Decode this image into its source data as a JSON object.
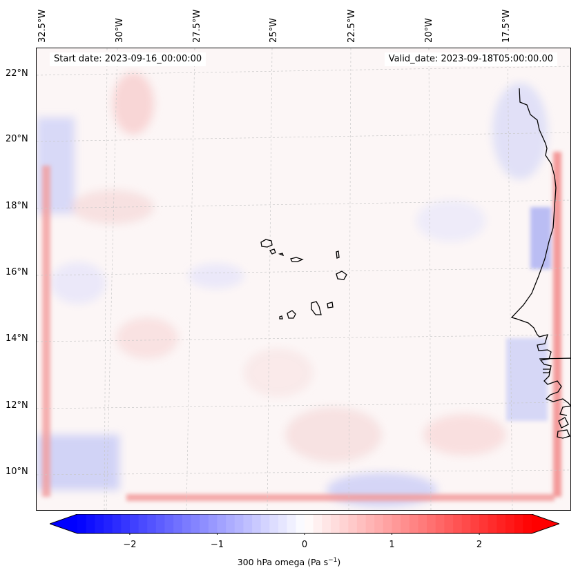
{
  "map": {
    "start_date": "Start date: 2023-09-16_00:00:00",
    "valid_date": "Valid_date: 2023-09-18T05:00:00.00",
    "lon_labels": [
      "32.5°W",
      "30°W",
      "27.5°W",
      "25°W",
      "22.5°W",
      "20°W",
      "17.5°W"
    ],
    "lat_labels": [
      "22°N",
      "20°N",
      "18°N",
      "16°N",
      "14°N",
      "12°N",
      "10°N"
    ],
    "extent": {
      "lon_min": -32.7,
      "lon_max": -16.0,
      "lat_min": 8.9,
      "lat_max": 22.8
    },
    "field": "300 hPa omega",
    "colors": {
      "positive": "#ff0000",
      "negative": "#0000ff",
      "zero": "#ffffff",
      "coast": "#000000"
    }
  },
  "colorbar": {
    "ticks": [
      "−2",
      "−1",
      "0",
      "1",
      "2"
    ],
    "tick_values": [
      -2,
      -1,
      0,
      1,
      2
    ],
    "range": [
      -2.6,
      2.6
    ],
    "label": "300 hPa omega (Pa s",
    "label_sup": "−1",
    "label_end": ")"
  }
}
